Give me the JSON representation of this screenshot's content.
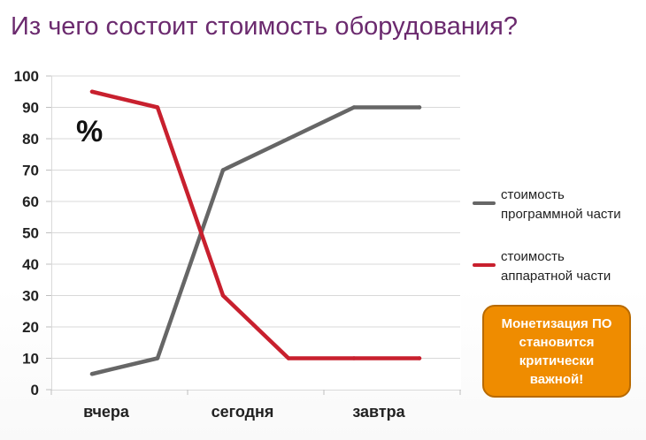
{
  "title": "Из чего состоит стоимость оборудования?",
  "unit_label": "%",
  "callout": "Монетизация ПО\nстановится\nкритически\nважной!",
  "chart_data": {
    "type": "line",
    "categories": [
      "вчера",
      "сегодня",
      "завтра"
    ],
    "x": [
      0.0,
      0.5,
      1.0,
      1.5,
      2.0,
      2.5
    ],
    "ylim": [
      0,
      100
    ],
    "yticks": [
      0,
      10,
      20,
      30,
      40,
      50,
      60,
      70,
      80,
      90,
      100
    ],
    "grid": true,
    "legend_position": "right",
    "series": [
      {
        "name": "стоимость\nпрограммной части",
        "color": "#666666",
        "values": [
          5,
          10,
          70,
          80,
          90,
          90
        ]
      },
      {
        "name": "стоимость\nаппаратной части",
        "color": "#c8202e",
        "values": [
          95,
          90,
          30,
          10,
          10,
          10
        ]
      }
    ]
  }
}
